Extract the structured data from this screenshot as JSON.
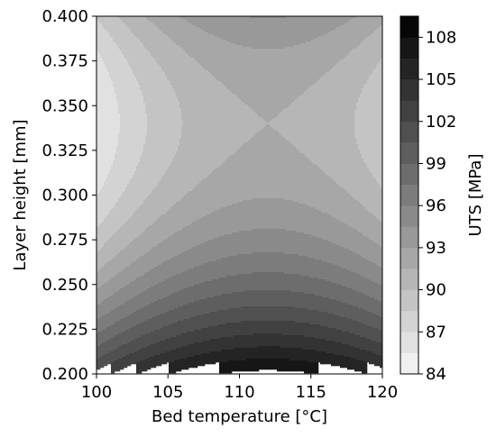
{
  "chart_data": {
    "type": "contour",
    "xlabel": "Bed temperature [°C]",
    "ylabel": "Layer height  [mm]",
    "colorbar_label": "UTS [MPa]",
    "xlim": [
      100,
      120
    ],
    "ylim": [
      0.2,
      0.4
    ],
    "x_ticks": [
      100,
      105,
      110,
      115,
      120
    ],
    "x_tick_labels": [
      "100",
      "105",
      "110",
      "115",
      "120"
    ],
    "y_ticks": [
      0.2,
      0.225,
      0.25,
      0.275,
      0.3,
      0.325,
      0.35,
      0.375,
      0.4
    ],
    "y_tick_labels": [
      "0.200",
      "0.225",
      "0.250",
      "0.275",
      "0.300",
      "0.325",
      "0.350",
      "0.375",
      "0.400"
    ],
    "levels_range": [
      84,
      109.5
    ],
    "level_step": 1.5,
    "colorbar_ticks": [
      84,
      87,
      90,
      93,
      96,
      99,
      102,
      105,
      108
    ],
    "colorbar_tick_labels": [
      "84",
      "87",
      "90",
      "93",
      "96",
      "99",
      "102",
      "105",
      "108"
    ],
    "colormap": "greys",
    "surface": {
      "form": "saddle (estimated from image)",
      "saddle_point": {
        "bed_temperature": 112,
        "layer_height": 0.34,
        "uts": 91.5
      },
      "min_region": {
        "bed_temperature": 100,
        "layer_height": 0.355,
        "uts": 85.5
      },
      "max_region": {
        "bed_temperature": 112,
        "layer_height": 0.2,
        "uts": 108.5
      }
    }
  }
}
